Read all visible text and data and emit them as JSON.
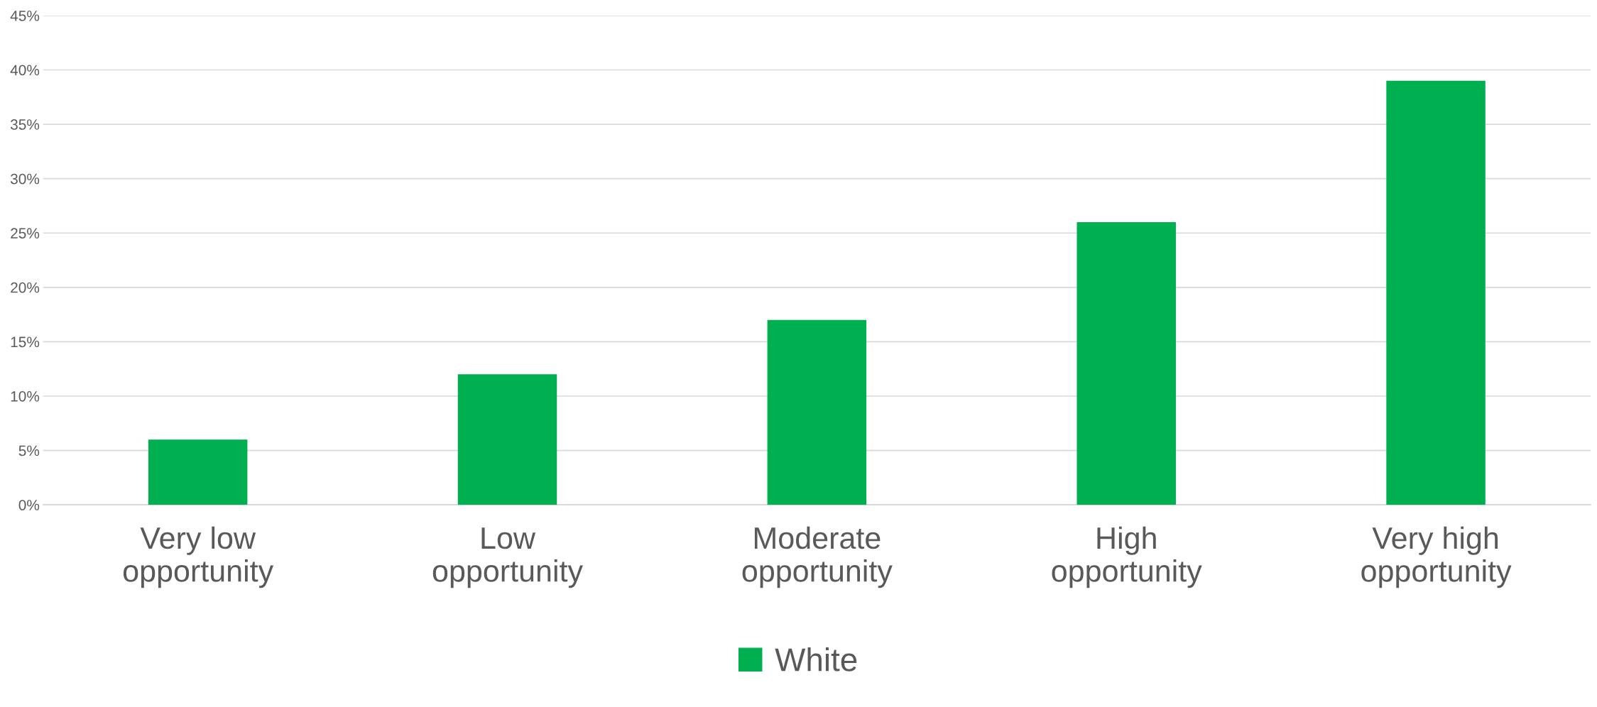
{
  "chart_data": {
    "type": "bar",
    "categories": [
      "Very low\nopportunity",
      "Low\nopportunity",
      "Moderate\nopportunity",
      "High\nopportunity",
      "Very high\nopportunity"
    ],
    "series": [
      {
        "name": "White",
        "color": "#00b050",
        "values": [
          6,
          12,
          17,
          26,
          39
        ]
      }
    ],
    "ylim": [
      0,
      45
    ],
    "yticks": [
      {
        "value": 0,
        "label": "0%"
      },
      {
        "value": 5,
        "label": "5%"
      },
      {
        "value": 10,
        "label": "10%"
      },
      {
        "value": 15,
        "label": "15%"
      },
      {
        "value": 20,
        "label": "20%"
      },
      {
        "value": 25,
        "label": "25%"
      },
      {
        "value": 30,
        "label": "30%"
      },
      {
        "value": 35,
        "label": "35%"
      },
      {
        "value": 40,
        "label": "40%"
      },
      {
        "value": 45,
        "label": "45%"
      }
    ],
    "grid": "y",
    "legend": "bottom"
  }
}
